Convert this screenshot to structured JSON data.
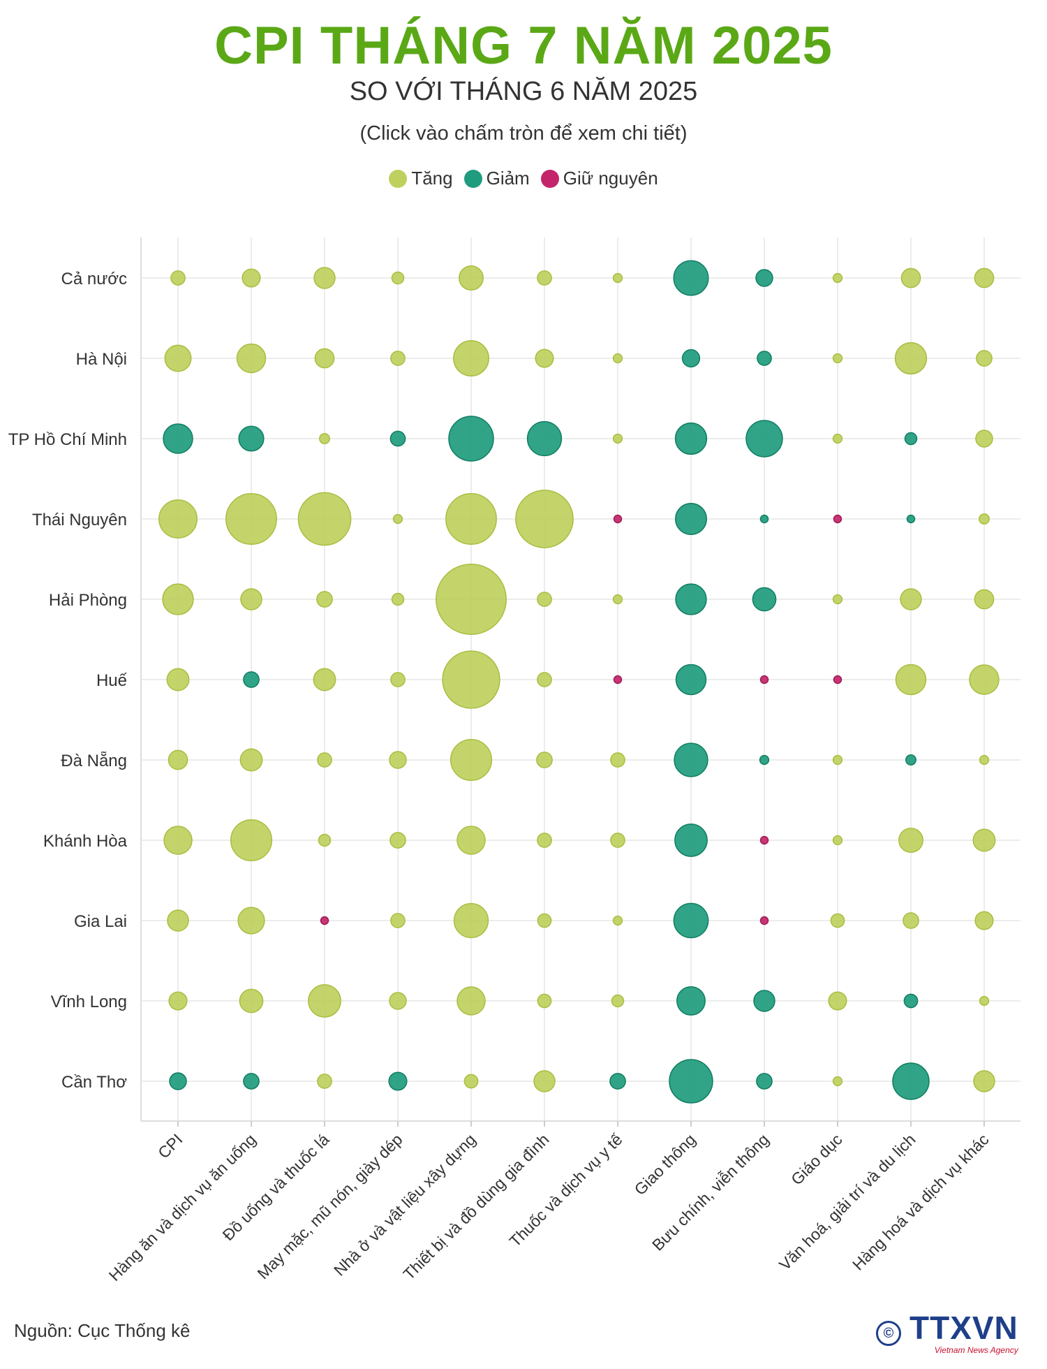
{
  "title": "CPI THÁNG 7 NĂM 2025",
  "subtitle": "SO VỚI THÁNG 6 NĂM 2025",
  "note": "(Click vào chấm tròn để xem chi tiết)",
  "legend": [
    {
      "label": "Tăng",
      "color": "#bfd05e"
    },
    {
      "label": "Giảm",
      "color": "#1f9c7d"
    },
    {
      "label": "Giữ nguyên",
      "color": "#c4246a"
    }
  ],
  "source": "Nguồn: Cục Thống kê",
  "logo": {
    "brand_main": "TTXVN",
    "brand_sub": "Vietnam News Agency",
    "symbol": "©"
  },
  "colors": {
    "title": "#5aa816",
    "grid": "#e6e6e6",
    "axis": "#dddddd"
  },
  "chart_data": {
    "type": "bubble",
    "note": "values are relative bubble sizes read from the graphic; status: tang = up, giam = down, giu = unchanged",
    "categories": [
      "CPI",
      "Hàng ăn và dịch vụ ăn uống",
      "Đồ uống và thuốc lá",
      "May mặc, mũ nón, giày dép",
      "Nhà ở và vật liệu xây dựng",
      "Thiết bị và đồ dùng gia đình",
      "Thuốc và dịch vụ y tế",
      "Giao thông",
      "Bưu chính, viễn thông",
      "Giáo dục",
      "Văn hoá, giải trí và du lịch",
      "Hàng hoá và dịch vụ khác"
    ],
    "regions": [
      "Cả nước",
      "Hà Nội",
      "TP Hồ Chí Minh",
      "Thái Nguyên",
      "Hải Phòng",
      "Huế",
      "Đà Nẵng",
      "Khánh Hòa",
      "Gia Lai",
      "Vĩnh Long",
      "Cần Thơ"
    ],
    "status": [
      [
        "tang",
        "tang",
        "tang",
        "tang",
        "tang",
        "tang",
        "tang",
        "giam",
        "giam",
        "tang",
        "tang",
        "tang"
      ],
      [
        "tang",
        "tang",
        "tang",
        "tang",
        "tang",
        "tang",
        "tang",
        "giam",
        "giam",
        "tang",
        "tang",
        "tang"
      ],
      [
        "giam",
        "giam",
        "tang",
        "giam",
        "giam",
        "giam",
        "tang",
        "giam",
        "giam",
        "tang",
        "giam",
        "tang"
      ],
      [
        "tang",
        "tang",
        "tang",
        "tang",
        "tang",
        "tang",
        "giu",
        "giam",
        "giam",
        "giu",
        "giam",
        "tang"
      ],
      [
        "tang",
        "tang",
        "tang",
        "tang",
        "tang",
        "tang",
        "tang",
        "giam",
        "giam",
        "tang",
        "tang",
        "tang"
      ],
      [
        "tang",
        "giam",
        "tang",
        "tang",
        "tang",
        "tang",
        "giu",
        "giam",
        "giu",
        "giu",
        "tang",
        "tang"
      ],
      [
        "tang",
        "tang",
        "tang",
        "tang",
        "tang",
        "tang",
        "tang",
        "giam",
        "giam",
        "tang",
        "giam",
        "tang"
      ],
      [
        "tang",
        "tang",
        "tang",
        "tang",
        "tang",
        "tang",
        "tang",
        "giam",
        "giu",
        "tang",
        "tang",
        "tang"
      ],
      [
        "tang",
        "tang",
        "giu",
        "tang",
        "tang",
        "tang",
        "tang",
        "giam",
        "giu",
        "tang",
        "tang",
        "tang"
      ],
      [
        "tang",
        "tang",
        "tang",
        "tang",
        "tang",
        "tang",
        "tang",
        "giam",
        "giam",
        "tang",
        "giam",
        "tang"
      ],
      [
        "giam",
        "giam",
        "tang",
        "giam",
        "tang",
        "tang",
        "giam",
        "giam",
        "giam",
        "tang",
        "giam",
        "tang"
      ]
    ],
    "values": [
      [
        0.1,
        0.16,
        0.22,
        0.07,
        0.29,
        0.1,
        0.04,
        0.6,
        0.14,
        0.04,
        0.18,
        0.18
      ],
      [
        0.34,
        0.41,
        0.18,
        0.1,
        0.62,
        0.16,
        0.04,
        0.15,
        0.1,
        0.04,
        0.49,
        0.12
      ],
      [
        0.43,
        0.31,
        0.05,
        0.11,
        1.0,
        0.58,
        0.04,
        0.49,
        0.66,
        0.04,
        0.07,
        0.14
      ],
      [
        0.72,
        1.28,
        1.38,
        0.04,
        1.28,
        1.65,
        0.03,
        0.48,
        0.03,
        0.03,
        0.03,
        0.05
      ],
      [
        0.47,
        0.22,
        0.12,
        0.07,
        2.46,
        0.1,
        0.04,
        0.47,
        0.27,
        0.04,
        0.22,
        0.18
      ],
      [
        0.24,
        0.12,
        0.24,
        0.1,
        1.63,
        0.1,
        0.03,
        0.45,
        0.03,
        0.03,
        0.45,
        0.43
      ],
      [
        0.18,
        0.24,
        0.1,
        0.14,
        0.84,
        0.12,
        0.1,
        0.56,
        0.04,
        0.04,
        0.05,
        0.04
      ],
      [
        0.39,
        0.84,
        0.07,
        0.12,
        0.39,
        0.1,
        0.1,
        0.52,
        0.03,
        0.04,
        0.29,
        0.24
      ],
      [
        0.22,
        0.35,
        0.03,
        0.1,
        0.58,
        0.09,
        0.04,
        0.59,
        0.03,
        0.09,
        0.12,
        0.16
      ],
      [
        0.16,
        0.27,
        0.52,
        0.14,
        0.39,
        0.09,
        0.07,
        0.4,
        0.22,
        0.16,
        0.09,
        0.04
      ],
      [
        0.14,
        0.12,
        0.1,
        0.16,
        0.09,
        0.22,
        0.12,
        0.94,
        0.12,
        0.04,
        0.66,
        0.22
      ]
    ]
  }
}
